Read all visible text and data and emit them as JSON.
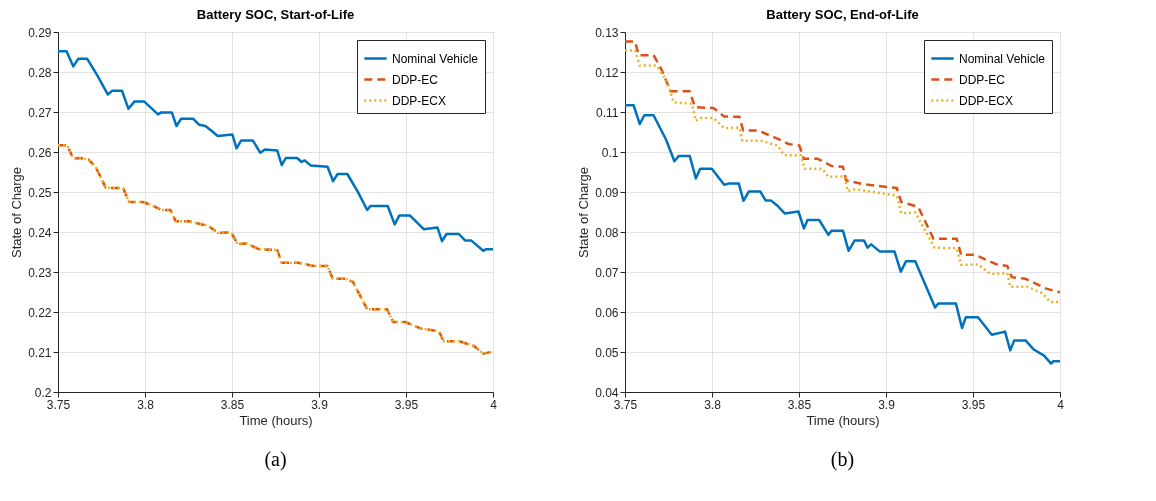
{
  "chart_data": [
    {
      "type": "line",
      "title": "Battery SOC, Start-of-Life",
      "xlabel": "Time (hours)",
      "ylabel": "State of Charge",
      "xlim": [
        3.75,
        4
      ],
      "xticks": [
        3.75,
        3.8,
        3.85,
        3.9,
        3.95,
        4
      ],
      "ylim": [
        0.2,
        0.29
      ],
      "yticks": [
        0.2,
        0.21,
        0.22,
        0.23,
        0.24,
        0.25,
        0.26,
        0.27,
        0.28,
        0.29
      ],
      "grid": true,
      "legend": "top right",
      "annotations": [
        "(a)"
      ],
      "series": [
        {
          "name": "Nominal Vehicle",
          "color": "#0072bd",
          "line_style": "solid",
          "x": [
            3.75,
            3.7549,
            3.7588,
            3.7616,
            3.7668,
            3.7725,
            3.7786,
            3.7812,
            3.7868,
            3.7905,
            3.7939,
            3.7996,
            3.8075,
            3.8093,
            3.8154,
            3.8181,
            3.8207,
            3.8277,
            3.8312,
            3.8347,
            3.8382,
            3.8418,
            3.8502,
            3.8526,
            3.8553,
            3.8619,
            3.8663,
            3.8689,
            3.876,
            3.8786,
            3.8809,
            3.8874,
            3.89,
            3.8918,
            3.8953,
            3.9049,
            3.9081,
            3.9107,
            3.9163,
            3.9225,
            3.9277,
            3.9295,
            3.9395,
            3.9435,
            3.9461,
            3.9523,
            3.9602,
            3.9681,
            3.9707,
            3.9733,
            3.9804,
            3.9839,
            3.9874,
            3.9944,
            3.9961,
            4.0
          ],
          "values": [
            0.2852,
            0.2852,
            0.2814,
            0.2833,
            0.2833,
            0.2792,
            0.2744,
            0.2753,
            0.2753,
            0.2708,
            0.2726,
            0.2726,
            0.2694,
            0.2699,
            0.2699,
            0.2665,
            0.2683,
            0.2683,
            0.2668,
            0.2665,
            0.2653,
            0.264,
            0.2644,
            0.2609,
            0.2629,
            0.2629,
            0.2598,
            0.2606,
            0.2604,
            0.2567,
            0.2585,
            0.2585,
            0.2575,
            0.2579,
            0.2566,
            0.2563,
            0.2527,
            0.2545,
            0.2545,
            0.2499,
            0.2455,
            0.2465,
            0.2465,
            0.2419,
            0.2441,
            0.2441,
            0.2407,
            0.2411,
            0.2377,
            0.2395,
            0.2395,
            0.2379,
            0.2379,
            0.2353,
            0.2357,
            0.2357
          ]
        },
        {
          "name": "DDP-EC",
          "color": "#d95319",
          "line_style": "dashed",
          "x": [
            3.75,
            3.7553,
            3.7588,
            3.7628,
            3.7675,
            3.7716,
            3.7774,
            3.7812,
            3.7874,
            3.7909,
            3.7988,
            3.804,
            3.8093,
            3.8146,
            3.8177,
            3.8251,
            3.8365,
            3.8418,
            3.8496,
            3.8532,
            3.8584,
            3.8654,
            3.876,
            3.8786,
            3.8882,
            3.897,
            3.9049,
            3.9079,
            3.9154,
            3.9195,
            3.9277,
            3.9391,
            3.9426,
            3.9496,
            3.9584,
            3.9689,
            3.9716,
            3.9804,
            3.9891,
            3.9944,
            4.0
          ],
          "values": [
            0.2617,
            0.2617,
            0.2583,
            0.2585,
            0.2581,
            0.2563,
            0.2511,
            0.251,
            0.251,
            0.2475,
            0.2475,
            0.2467,
            0.2455,
            0.2455,
            0.2427,
            0.2427,
            0.2415,
            0.2398,
            0.2399,
            0.237,
            0.2371,
            0.2357,
            0.2355,
            0.2323,
            0.2323,
            0.2315,
            0.2315,
            0.2283,
            0.2283,
            0.2275,
            0.2207,
            0.2207,
            0.2175,
            0.2175,
            0.2159,
            0.2152,
            0.2127,
            0.2127,
            0.2115,
            0.2096,
            0.2101
          ]
        },
        {
          "name": "DDP-ECX",
          "color": "#edb120",
          "line_style": "dotted",
          "x": [
            3.75,
            3.7553,
            3.7588,
            3.7628,
            3.7675,
            3.7716,
            3.7774,
            3.7812,
            3.7874,
            3.7909,
            3.7988,
            3.804,
            3.8093,
            3.8146,
            3.8177,
            3.8251,
            3.8365,
            3.8418,
            3.8496,
            3.8532,
            3.8584,
            3.8654,
            3.876,
            3.8786,
            3.8882,
            3.897,
            3.9049,
            3.9079,
            3.9154,
            3.9195,
            3.9277,
            3.9391,
            3.9426,
            3.9496,
            3.9584,
            3.9689,
            3.9716,
            3.9804,
            3.9891,
            3.9944,
            4.0
          ],
          "values": [
            0.2617,
            0.2617,
            0.2583,
            0.2585,
            0.2581,
            0.2563,
            0.2511,
            0.251,
            0.251,
            0.2475,
            0.2475,
            0.2467,
            0.2455,
            0.2455,
            0.2427,
            0.2427,
            0.2415,
            0.2398,
            0.2399,
            0.237,
            0.2371,
            0.2357,
            0.2355,
            0.2323,
            0.2323,
            0.2315,
            0.2315,
            0.2283,
            0.2283,
            0.2275,
            0.2207,
            0.2207,
            0.2175,
            0.2175,
            0.2159,
            0.2152,
            0.2127,
            0.2127,
            0.2115,
            0.2096,
            0.2101
          ]
        }
      ]
    },
    {
      "type": "line",
      "title": "Battery SOC, End-of-Life",
      "xlabel": "Time (hours)",
      "ylabel": "State of Charge",
      "xlim": [
        3.75,
        4
      ],
      "xticks": [
        3.75,
        3.8,
        3.85,
        3.9,
        3.95,
        4
      ],
      "ylim": [
        0.04,
        0.13
      ],
      "yticks": [
        0.04,
        0.05,
        0.06,
        0.07,
        0.08,
        0.09,
        0.1,
        0.11,
        0.12,
        0.13
      ],
      "grid": true,
      "legend": "top right",
      "annotations": [
        "(b)"
      ],
      "series": [
        {
          "name": "Nominal Vehicle",
          "color": "#0072bd",
          "line_style": "solid",
          "x": [
            3.75,
            3.7549,
            3.7585,
            3.7611,
            3.7664,
            3.7735,
            3.7784,
            3.7809,
            3.7872,
            3.7907,
            3.7932,
            3.7999,
            3.807,
            3.8096,
            3.8154,
            3.8181,
            3.8211,
            3.8278,
            3.8308,
            3.8338,
            3.8378,
            3.8419,
            3.8497,
            3.8528,
            3.8549,
            3.8616,
            3.8669,
            3.8687,
            3.8753,
            3.8785,
            3.882,
            3.8873,
            3.8894,
            3.8915,
            3.8965,
            3.9049,
            3.9085,
            3.9115,
            3.9168,
            3.9282,
            3.93,
            3.9402,
            3.9437,
            3.9459,
            3.9529,
            3.9608,
            3.9684,
            3.9714,
            3.9737,
            3.9802,
            3.9847,
            3.9908,
            3.9949,
            3.9961,
            4.0
          ],
          "values": [
            0.1117,
            0.1117,
            0.107,
            0.1092,
            0.1092,
            0.1032,
            0.0977,
            0.099,
            0.099,
            0.0934,
            0.0958,
            0.0958,
            0.0918,
            0.0921,
            0.0921,
            0.0878,
            0.0901,
            0.0901,
            0.0879,
            0.0879,
            0.0865,
            0.0846,
            0.0851,
            0.0809,
            0.083,
            0.083,
            0.0793,
            0.0803,
            0.0803,
            0.0753,
            0.0779,
            0.0779,
            0.0761,
            0.0769,
            0.0751,
            0.0751,
            0.0701,
            0.0727,
            0.0727,
            0.0611,
            0.0621,
            0.0621,
            0.056,
            0.0587,
            0.0587,
            0.0543,
            0.0551,
            0.0504,
            0.0529,
            0.0529,
            0.0507,
            0.0491,
            0.0471,
            0.0477,
            0.0477
          ]
        },
        {
          "name": "DDP-EC",
          "color": "#d95319",
          "line_style": "dashed",
          "x": [
            3.75,
            3.7558,
            3.7579,
            3.7664,
            3.7708,
            3.7761,
            3.7872,
            3.7902,
            3.8008,
            3.807,
            3.8158,
            3.8179,
            3.8264,
            3.8378,
            3.844,
            3.8502,
            3.8528,
            3.8608,
            3.8687,
            3.8753,
            3.8771,
            3.8877,
            3.9062,
            3.9088,
            3.9185,
            3.9273,
            3.9406,
            3.9432,
            3.9511,
            3.9635,
            3.9697,
            3.9723,
            3.9802,
            3.9917,
            4.0
          ],
          "values": [
            0.1276,
            0.1276,
            0.1242,
            0.1242,
            0.1208,
            0.1152,
            0.1152,
            0.1112,
            0.111,
            0.1089,
            0.1088,
            0.1054,
            0.1054,
            0.1033,
            0.102,
            0.1016,
            0.0983,
            0.0983,
            0.0965,
            0.0963,
            0.0929,
            0.0919,
            0.091,
            0.0875,
            0.0863,
            0.0783,
            0.0783,
            0.0743,
            0.0743,
            0.0719,
            0.0715,
            0.0687,
            0.0683,
            0.0659,
            0.0649
          ]
        },
        {
          "name": "DDP-ECX",
          "color": "#edb120",
          "line_style": "dotted",
          "x": [
            3.75,
            3.7558,
            3.7585,
            3.7682,
            3.7743,
            3.7779,
            3.7884,
            3.7907,
            3.7929,
            3.8008,
            3.807,
            3.8158,
            3.8175,
            3.8281,
            3.8378,
            3.8414,
            3.8511,
            3.8532,
            3.8634,
            3.8669,
            3.8762,
            3.878,
            3.8824,
            3.9062,
            3.9088,
            3.9168,
            3.9279,
            3.9406,
            3.9432,
            3.9529,
            3.96,
            3.9697,
            3.9714,
            3.9811,
            3.99,
            3.9944,
            4.0
          ],
          "values": [
            0.1254,
            0.1254,
            0.1216,
            0.1216,
            0.1176,
            0.1124,
            0.1121,
            0.1078,
            0.1085,
            0.1085,
            0.106,
            0.1061,
            0.1028,
            0.1028,
            0.1016,
            0.0992,
            0.0992,
            0.0958,
            0.0958,
            0.0938,
            0.0939,
            0.0902,
            0.0907,
            0.0891,
            0.0847,
            0.0849,
            0.0761,
            0.0759,
            0.0718,
            0.0719,
            0.0695,
            0.0697,
            0.0663,
            0.0663,
            0.0647,
            0.0625,
            0.0625
          ]
        }
      ]
    }
  ]
}
